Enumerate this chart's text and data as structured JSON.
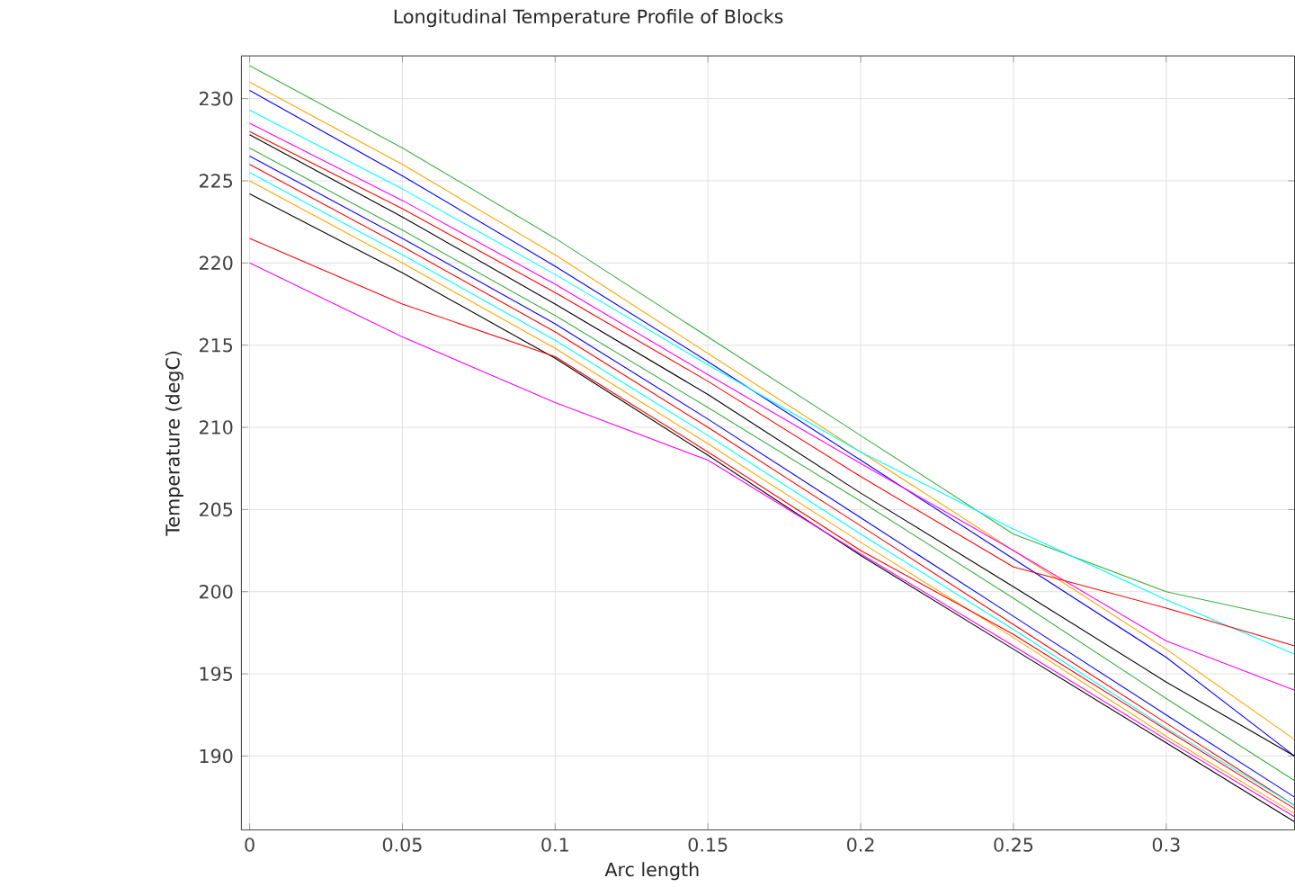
{
  "chart_data": {
    "type": "line",
    "title": "Longitudinal Temperature Profile of Blocks",
    "xlabel": "Arc length",
    "ylabel": "Temperature (degC)",
    "x": [
      0,
      0.05,
      0.1,
      0.15,
      0.2,
      0.25,
      0.3,
      0.342
    ],
    "xlim": [
      -0.0027,
      0.342
    ],
    "ylim": [
      185.5,
      232.6
    ],
    "xticks": [
      0,
      0.05,
      0.1,
      0.15,
      0.2,
      0.25,
      0.3
    ],
    "yticks": [
      190,
      195,
      200,
      205,
      210,
      215,
      220,
      225,
      230
    ],
    "grid": true,
    "marker": "none",
    "line_style": "solid",
    "series": [
      {
        "color": "#3cb043",
        "values": [
          232,
          227,
          221.5,
          215.5,
          209.5,
          203.5,
          200,
          198.3
        ]
      },
      {
        "color": "#ffa500",
        "values": [
          231,
          226,
          220.5,
          214.5,
          208.5,
          202.5,
          196.5,
          191
        ]
      },
      {
        "color": "#0000ff",
        "values": [
          230.5,
          225.3,
          219.8,
          214,
          208,
          202,
          196,
          190
        ]
      },
      {
        "color": "#00ffff",
        "values": [
          229.3,
          224.5,
          219.3,
          213.8,
          208.5,
          203.8,
          199.5,
          196.2
        ]
      },
      {
        "color": "#ff00ff",
        "values": [
          228.5,
          223.8,
          218.7,
          213.2,
          207.8,
          202.5,
          197,
          194
        ]
      },
      {
        "color": "#ff0000",
        "values": [
          228,
          223.3,
          218.2,
          212.8,
          207,
          201.5,
          199,
          196.7
        ]
      },
      {
        "color": "#000000",
        "values": [
          227.8,
          222.8,
          217.5,
          212,
          206,
          200.3,
          194.5,
          190
        ]
      },
      {
        "color": "#3cb043",
        "values": [
          227,
          222,
          216.8,
          211.2,
          205.5,
          199.6,
          193.5,
          188.5
        ]
      },
      {
        "color": "#0000ff",
        "values": [
          226.5,
          221.5,
          216.3,
          210.5,
          204.5,
          198.5,
          192.5,
          187.5
        ]
      },
      {
        "color": "#ff0000",
        "values": [
          226,
          221,
          215.8,
          210,
          204,
          198,
          192,
          187
        ]
      },
      {
        "color": "#00ffff",
        "values": [
          225.5,
          220.5,
          215.3,
          209.5,
          203.5,
          197.7,
          191.7,
          187
        ]
      },
      {
        "color": "#ffa500",
        "values": [
          225,
          220,
          214.8,
          209,
          203,
          197.2,
          191.2,
          186.5
        ]
      },
      {
        "color": "#000000",
        "values": [
          224.2,
          219.4,
          214.2,
          208.3,
          202.2,
          196.5,
          190.8,
          186
        ]
      },
      {
        "color": "#ff0000",
        "values": [
          221.5,
          217.5,
          214.3,
          208.5,
          202.5,
          197.4,
          191.6,
          186.8
        ]
      },
      {
        "color": "#ff00ff",
        "values": [
          220,
          215.5,
          211.5,
          208,
          202.3,
          196.7,
          191,
          186.3
        ]
      }
    ]
  }
}
